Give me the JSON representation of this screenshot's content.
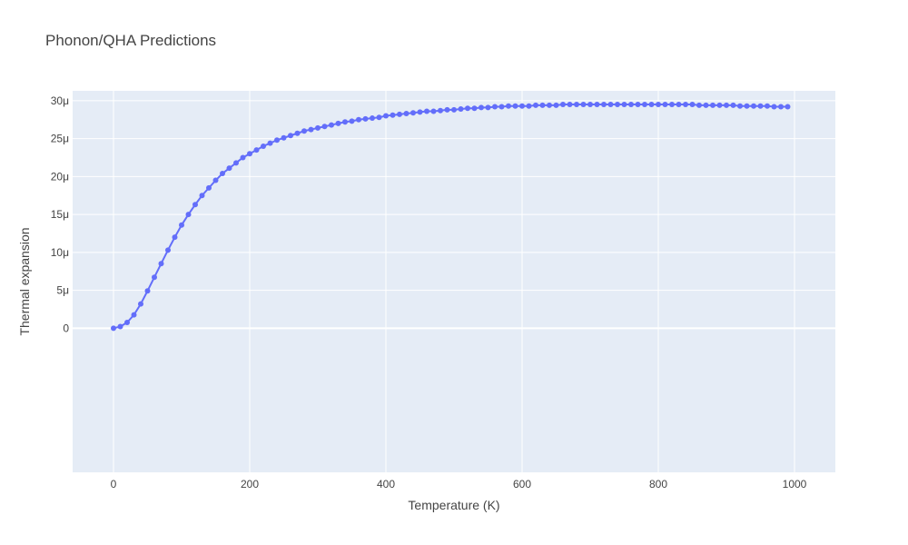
{
  "chart_data": {
    "type": "line",
    "title": "Phonon/QHA Predictions",
    "xlabel": "Temperature (K)",
    "ylabel": "Thermal expansion",
    "xlim": [
      -60,
      1060
    ],
    "ylim": [
      -1.9e-05,
      3.13e-05
    ],
    "x_ticks": [
      0,
      200,
      400,
      600,
      800,
      1000
    ],
    "x_tick_labels": [
      "0",
      "200",
      "400",
      "600",
      "800",
      "1000"
    ],
    "y_ticks": [
      0,
      5e-06,
      1e-05,
      1.5e-05,
      2e-05,
      2.5e-05,
      3e-05
    ],
    "y_tick_labels": [
      "0",
      "5μ",
      "10μ",
      "15μ",
      "20μ",
      "25μ",
      "30μ"
    ],
    "grid": true,
    "legend": false,
    "colors": {
      "series": "#636efa",
      "plot_bg": "#e5ecf6",
      "grid": "#ffffff",
      "text": "#444444"
    },
    "series": [
      {
        "mode": "lines+markers",
        "x": [
          0,
          10,
          20,
          30,
          40,
          50,
          60,
          70,
          80,
          90,
          100,
          110,
          120,
          130,
          140,
          150,
          160,
          170,
          180,
          190,
          200,
          210,
          220,
          230,
          240,
          250,
          260,
          270,
          280,
          290,
          300,
          310,
          320,
          330,
          340,
          350,
          360,
          370,
          380,
          390,
          400,
          410,
          420,
          430,
          440,
          450,
          460,
          470,
          480,
          490,
          500,
          510,
          520,
          530,
          540,
          550,
          560,
          570,
          580,
          590,
          600,
          610,
          620,
          630,
          640,
          650,
          660,
          670,
          680,
          690,
          700,
          710,
          720,
          730,
          740,
          750,
          760,
          770,
          780,
          790,
          800,
          810,
          820,
          830,
          840,
          850,
          860,
          870,
          880,
          890,
          900,
          910,
          920,
          930,
          940,
          950,
          960,
          970,
          980,
          990
        ],
        "y": [
          0,
          2.2e-07,
          7.6e-07,
          1.76e-06,
          3.2e-06,
          4.92e-06,
          6.72e-06,
          8.52e-06,
          1.03e-05,
          1.2e-05,
          1.36e-05,
          1.5e-05,
          1.63e-05,
          1.75e-05,
          1.85e-05,
          1.95e-05,
          2.04e-05,
          2.11e-05,
          2.18e-05,
          2.25e-05,
          2.3e-05,
          2.35e-05,
          2.4e-05,
          2.44e-05,
          2.48e-05,
          2.51e-05,
          2.54e-05,
          2.57e-05,
          2.6e-05,
          2.62e-05,
          2.64e-05,
          2.66e-05,
          2.68e-05,
          2.7e-05,
          2.72e-05,
          2.73e-05,
          2.75e-05,
          2.76e-05,
          2.77e-05,
          2.78e-05,
          2.8e-05,
          2.81e-05,
          2.82e-05,
          2.83e-05,
          2.84e-05,
          2.85e-05,
          2.86e-05,
          2.86e-05,
          2.87e-05,
          2.88e-05,
          2.88e-05,
          2.89e-05,
          2.9e-05,
          2.9e-05,
          2.91e-05,
          2.91e-05,
          2.92e-05,
          2.92e-05,
          2.93e-05,
          2.93e-05,
          2.93e-05,
          2.93e-05,
          2.94e-05,
          2.94e-05,
          2.94e-05,
          2.94e-05,
          2.95e-05,
          2.95e-05,
          2.95e-05,
          2.95e-05,
          2.95e-05,
          2.95e-05,
          2.95e-05,
          2.95e-05,
          2.95e-05,
          2.95e-05,
          2.95e-05,
          2.95e-05,
          2.95e-05,
          2.95e-05,
          2.95e-05,
          2.95e-05,
          2.95e-05,
          2.95e-05,
          2.95e-05,
          2.95e-05,
          2.94e-05,
          2.94e-05,
          2.94e-05,
          2.94e-05,
          2.94e-05,
          2.94e-05,
          2.93e-05,
          2.93e-05,
          2.93e-05,
          2.93e-05,
          2.93e-05,
          2.92e-05,
          2.92e-05,
          2.92e-05
        ]
      }
    ]
  }
}
